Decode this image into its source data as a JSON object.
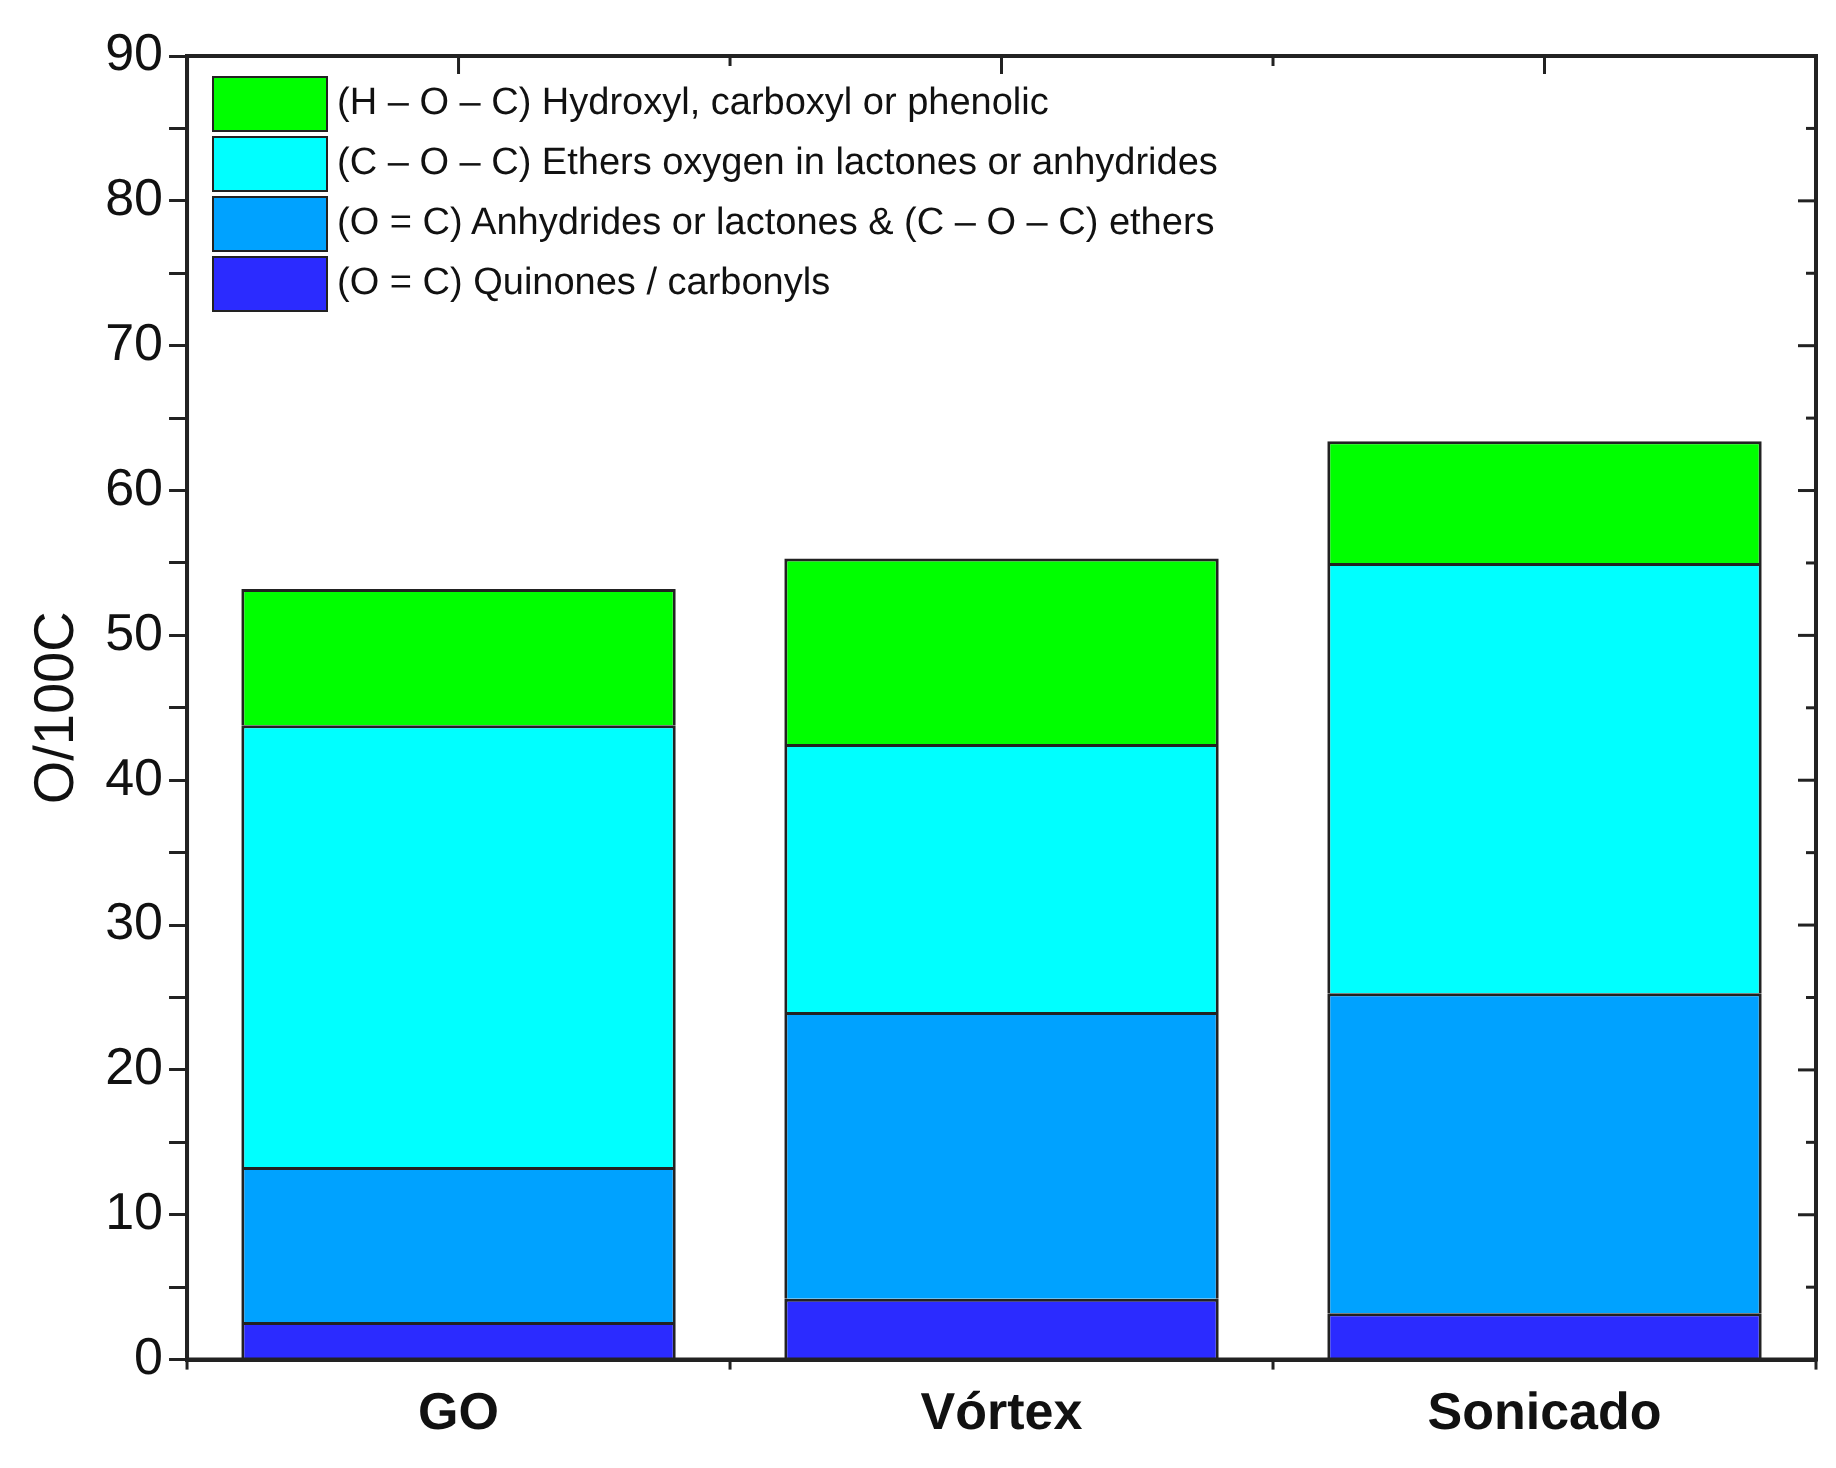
{
  "chart_data": {
    "type": "bar",
    "stacked": true,
    "ylabel": "O/100C",
    "categories": [
      "GO",
      "Vórtex",
      "Sonicado"
    ],
    "series": [
      {
        "name": "(O = C)  Quinones / carbonyls",
        "color": "#2b2bff",
        "values": [
          2.6,
          4.2,
          3.2
        ]
      },
      {
        "name": "(O = C) Anhydrides or lactones & (C – O – C) ethers",
        "color": "#00a2ff",
        "values": [
          10.7,
          19.8,
          22.1
        ]
      },
      {
        "name": "(C – O – C) Ethers oxygen in lactones or anhydrides",
        "color": "#00ffff",
        "values": [
          30.5,
          18.5,
          29.7
        ]
      },
      {
        "name": "(H – O – C) Hydroxyl, carboxyl or phenolic",
        "color": "#00ff00",
        "values": [
          9.4,
          12.8,
          8.4
        ]
      }
    ],
    "ylim": [
      0,
      90
    ],
    "yticks": [
      0,
      {
        "value": 5,
        "label": null
      },
      10,
      {
        "value": 15,
        "label": null
      },
      20,
      {
        "value": 25,
        "label": null
      },
      30,
      {
        "value": 35,
        "label": null
      },
      40,
      {
        "value": 45,
        "label": null
      },
      50,
      {
        "value": 55,
        "label": null
      },
      60,
      {
        "value": 65,
        "label": null
      },
      70,
      {
        "value": 75,
        "label": null
      },
      80,
      {
        "value": 85,
        "label": null
      },
      90
    ],
    "grid": false,
    "legend": "top left"
  }
}
